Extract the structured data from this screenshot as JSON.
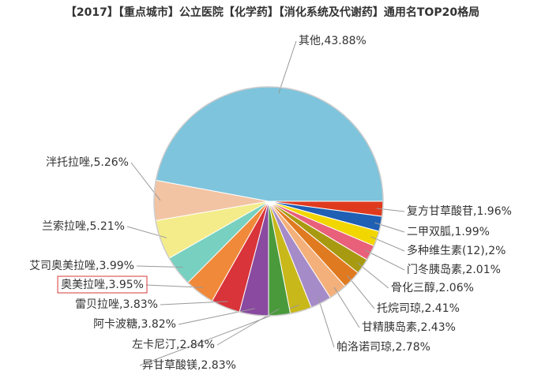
{
  "chart_data": {
    "type": "pie",
    "title": "【2017】【重点城市】公立医院【化学药】【消化系统及代谢药】通用名TOP20格局",
    "values": [
      1.96,
      1.99,
      2,
      2.01,
      2.06,
      2.41,
      2.43,
      2.78,
      2.83,
      2.84,
      3.82,
      3.83,
      3.95,
      3.99,
      5.21,
      5.26,
      43.88
    ],
    "value_labels": [
      "复方甘草酸苷,1.96%",
      "二甲双胍,1.99%",
      "多种维生素(12),2%",
      "门冬胰岛素,2.01%",
      "骨化三醇,2.06%",
      "托烷司琼,2.41%",
      "甘精胰岛素,2.43%",
      "帕洛诺司琼,2.78%",
      "异甘草酸镁,2.83%",
      "左卡尼汀,2.84%",
      "阿卡波糖,3.82%",
      "雷贝拉唑,3.83%",
      "奥美拉唑,3.95%",
      "艾司奥美拉唑,3.99%",
      "兰索拉唑,5.21%",
      "泮托拉唑,5.26%",
      "其他,43.88%"
    ],
    "colors": [
      "#e03a1e",
      "#1f5fb4",
      "#f2d600",
      "#e8607a",
      "#a89a10",
      "#e07a20",
      "#f4b07a",
      "#a58bc8",
      "#c9b81a",
      "#4a9a3c",
      "#8a4aa0",
      "#d8343a",
      "#f08a3a",
      "#78d0c0",
      "#f4ec8a",
      "#f2c4a4",
      "#7ec4dc"
    ]
  }
}
